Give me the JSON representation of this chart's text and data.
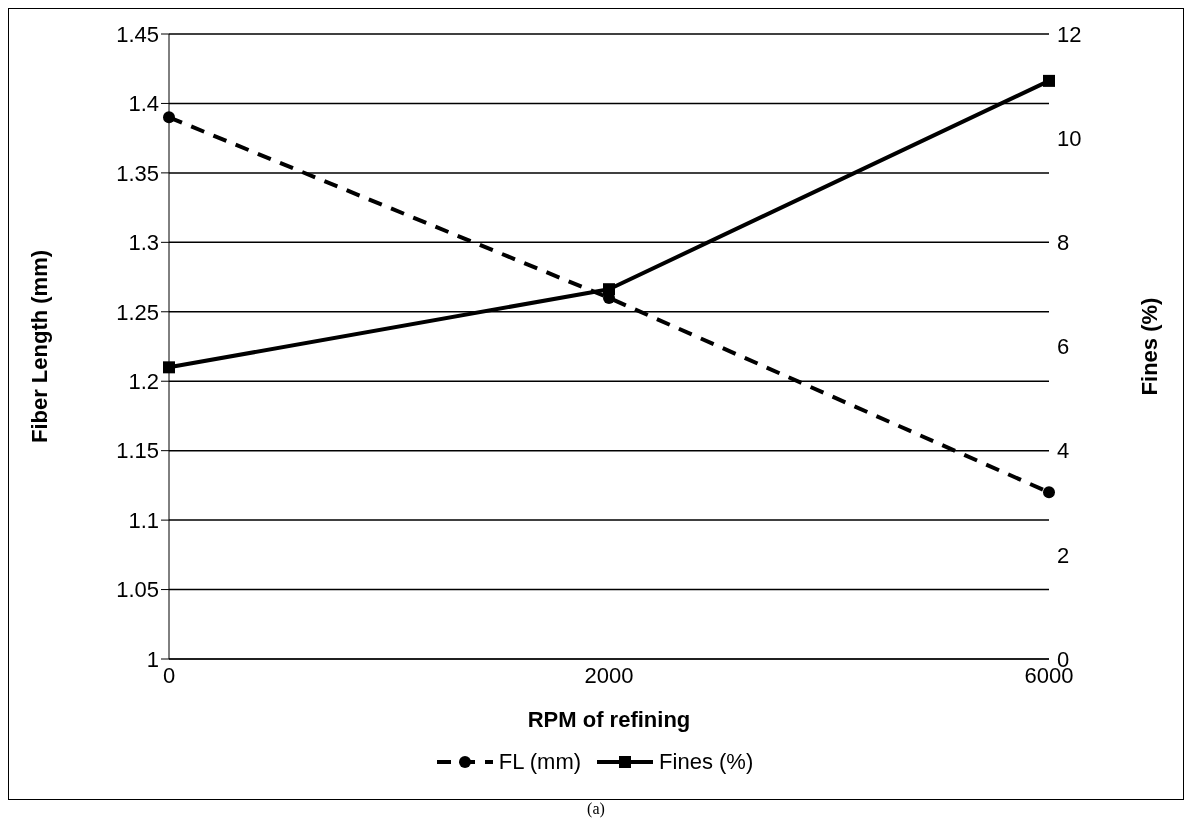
{
  "chart_data": {
    "type": "line",
    "xlabel": "RPM of refining",
    "ylabel": "Fiber Length (mm)",
    "y2label": "Fines (%)",
    "categories": [
      "0",
      "2000",
      "6000"
    ],
    "series": [
      {
        "name": "FL (mm)",
        "color": "#000000",
        "values": [
          1.39,
          1.26,
          1.12
        ],
        "marker": "circle",
        "line_style": "dashed"
      },
      {
        "name": "Fines (%)",
        "color": "#000000",
        "values": [
          5.6,
          7.1,
          11.1
        ],
        "marker": "square",
        "line_style": "solid",
        "axis": "y2"
      }
    ],
    "ylim": [
      1,
      1.45
    ],
    "yticks": [
      1,
      1.05,
      1.1,
      1.15,
      1.2,
      1.25,
      1.3,
      1.35,
      1.4,
      1.45
    ],
    "y2lim": [
      0,
      12
    ],
    "y2ticks": [
      0,
      2,
      4,
      6,
      8,
      10,
      12
    ],
    "grid": "y",
    "legend": "bottom",
    "annotations": [
      "(a)"
    ]
  }
}
